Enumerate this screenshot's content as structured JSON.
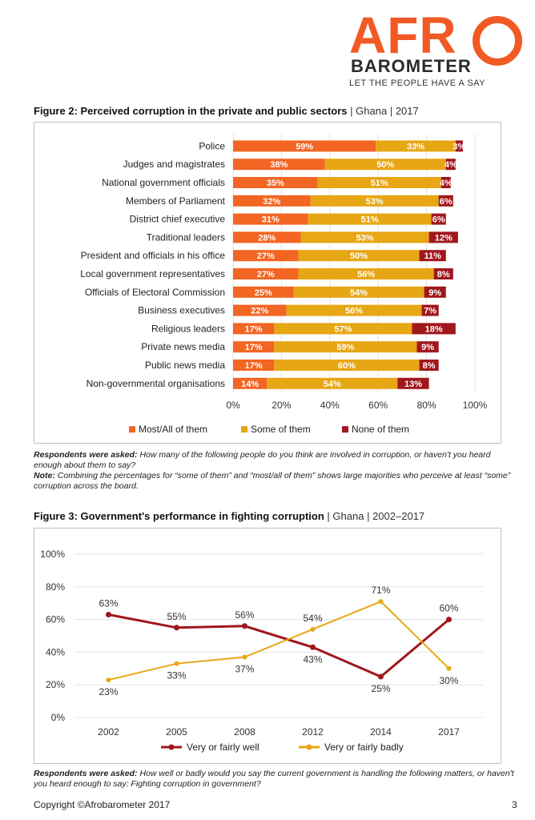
{
  "logo": {
    "afro": "AFR",
    "barometer": "BAROMETER",
    "tagline": "LET THE PEOPLE HAVE A SAY"
  },
  "figure2": {
    "title": "Figure 2: Perceived corruption in the private and public sectors",
    "country": "Ghana",
    "year": "2017",
    "note_asked_label": "Respondents were asked:",
    "note_asked_text": "How many of the following people do you think are involved in corruption, or haven't you heard enough about them to say?",
    "note_label": "Note:",
    "note_text": "Combining the percentages for “some of them” and “most/all of them” shows large majorities who perceive at least “some” corruption across the board."
  },
  "figure3": {
    "title": "Figure 3: Government's performance in fighting corruption",
    "country": "Ghana",
    "years": "2002–2017",
    "note_asked_label": "Respondents were asked:",
    "note_asked_text": "How well or badly would you say the current government is handling the following matters, or haven't you heard enough to say: Fighting corruption in government?"
  },
  "footer": {
    "copyright": "Copyright ©Afrobarometer 2017",
    "page": "3"
  },
  "chart_data": [
    {
      "type": "bar",
      "orientation": "horizontal",
      "stacked": true,
      "categories": [
        "Police",
        "Judges and magistrates",
        "National government officials",
        "Members of Parliament",
        "District chief executive",
        "Traditional leaders",
        "President and officials in his office",
        "Local government representatives",
        "Officials of Electoral Commission",
        "Business executives",
        "Religious leaders",
        "Private news media",
        "Public news media",
        "Non-governmental organisations"
      ],
      "series": [
        {
          "name": "Most/All of them",
          "color": "#f26522",
          "label_color": "#ffffff",
          "values": [
            59,
            38,
            35,
            32,
            31,
            28,
            27,
            27,
            25,
            22,
            17,
            17,
            17,
            14
          ]
        },
        {
          "name": "Some of them",
          "color": "#e7a614",
          "label_color": "#ffffff",
          "values": [
            33,
            50,
            51,
            53,
            51,
            53,
            50,
            56,
            54,
            56,
            57,
            59,
            60,
            54
          ]
        },
        {
          "name": "None of them",
          "color": "#a0171c",
          "label_color": "#ffffff",
          "values": [
            3,
            4,
            4,
            6,
            6,
            12,
            11,
            8,
            9,
            7,
            18,
            9,
            8,
            13
          ]
        }
      ],
      "xlim": [
        0,
        100
      ],
      "xticks": [
        "0%",
        "20%",
        "40%",
        "60%",
        "80%",
        "100%"
      ],
      "grid": true,
      "legend_position": "bottom"
    },
    {
      "type": "line",
      "x": [
        "2002",
        "2005",
        "2008",
        "2012",
        "2014",
        "2017"
      ],
      "series": [
        {
          "name": "Very or fairly well",
          "color": "#a0171c",
          "values": [
            63,
            55,
            56,
            43,
            25,
            60
          ]
        },
        {
          "name": "Very or fairly badly",
          "color": "#e7a614",
          "values": [
            23,
            33,
            37,
            54,
            71,
            30
          ]
        }
      ],
      "ylim": [
        0,
        100
      ],
      "yticks": [
        "0%",
        "20%",
        "40%",
        "60%",
        "80%",
        "100%"
      ],
      "grid": true,
      "legend_position": "bottom"
    }
  ]
}
